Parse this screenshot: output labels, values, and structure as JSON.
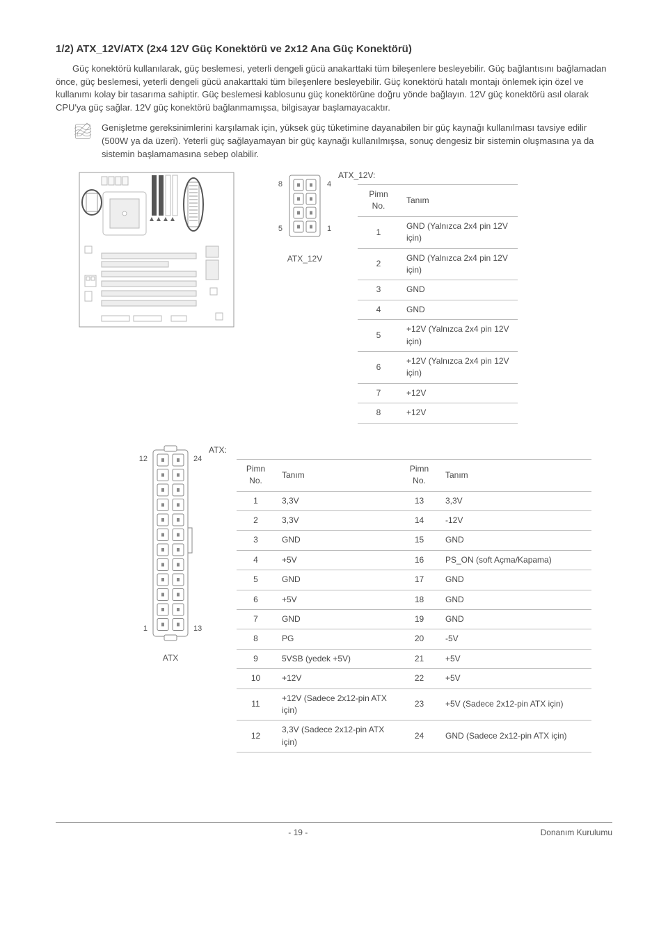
{
  "heading": "1/2) ATX_12V/ATX (2x4 12V Güç Konektörü ve 2x12 Ana Güç Konektörü)",
  "intro_paragraph": "Güç konektörü kullanılarak, güç beslemesi, yeterli dengeli gücü anakarttaki tüm bileşenlere besleyebilir. Güç bağlantısını bağlamadan önce, güç beslemesi, yeterli dengeli gücü anakarttaki tüm bileşenlere besleyebilir. Güç konektörü hatalı montajı önlemek için özel ve kullanımı kolay bir tasarıma sahiptir. Güç beslemesi kablosunu güç konektörüne doğru yönde bağlayın. 12V güç konektörü asıl olarak CPU'ya güç sağlar. 12V güç konektörü bağlanmamışsa, bilgisayar başlamayacaktır.",
  "note_text": "Genişletme gereksinimlerini karşılamak için, yüksek güç tüketimine dayanabilen bir güç kaynağı kullanılması tavsiye edilir (500W ya da üzeri). Yeterli güç sağlayamayan bir güç kaynağı kullanılmışsa, sonuç dengesiz bir sistemin oluşmasına ya da sistemin başlamamasına sebep olabilir.",
  "atx12v_title": "ATX_12V:",
  "atx12v_label": "ATX_12V",
  "atx12v_pins": {
    "tl": "8",
    "tr": "4",
    "bl": "5",
    "br": "1"
  },
  "col_pin": "Pimn No.",
  "col_def": "Tanım",
  "atx12v_table": [
    {
      "no": "1",
      "def": "GND (Yalnızca 2x4 pin 12V için)"
    },
    {
      "no": "2",
      "def": "GND (Yalnızca 2x4 pin 12V için)"
    },
    {
      "no": "3",
      "def": "GND"
    },
    {
      "no": "4",
      "def": "GND"
    },
    {
      "no": "5",
      "def": "+12V (Yalnızca 2x4 pin 12V için)"
    },
    {
      "no": "6",
      "def": "+12V (Yalnızca 2x4 pin 12V için)"
    },
    {
      "no": "7",
      "def": "+12V"
    },
    {
      "no": "8",
      "def": "+12V"
    }
  ],
  "atx_title": "ATX:",
  "atx_label": "ATX",
  "atx_pins": {
    "tl": "12",
    "tr": "24",
    "bl": "1",
    "br": "13"
  },
  "atx_table_left": [
    {
      "no": "1",
      "def": "3,3V"
    },
    {
      "no": "2",
      "def": "3,3V"
    },
    {
      "no": "3",
      "def": "GND"
    },
    {
      "no": "4",
      "def": "+5V"
    },
    {
      "no": "5",
      "def": "GND"
    },
    {
      "no": "6",
      "def": "+5V"
    },
    {
      "no": "7",
      "def": "GND"
    },
    {
      "no": "8",
      "def": "PG"
    },
    {
      "no": "9",
      "def": "5VSB (yedek +5V)"
    },
    {
      "no": "10",
      "def": "+12V"
    },
    {
      "no": "11",
      "def": "+12V (Sadece 2x12-pin ATX için)"
    },
    {
      "no": "12",
      "def": "3,3V (Sadece 2x12-pin ATX için)"
    }
  ],
  "atx_table_right": [
    {
      "no": "13",
      "def": "3,3V"
    },
    {
      "no": "14",
      "def": "-12V"
    },
    {
      "no": "15",
      "def": "GND"
    },
    {
      "no": "16",
      "def": "PS_ON (soft Açma/Kapama)"
    },
    {
      "no": "17",
      "def": "GND"
    },
    {
      "no": "18",
      "def": "GND"
    },
    {
      "no": "19",
      "def": "GND"
    },
    {
      "no": "20",
      "def": "-5V"
    },
    {
      "no": "21",
      "def": "+5V"
    },
    {
      "no": "22",
      "def": "+5V"
    },
    {
      "no": "23",
      "def": "+5V (Sadece 2x12-pin ATX için)"
    },
    {
      "no": "24",
      "def": "GND (Sadece 2x12-pin ATX için)"
    }
  ],
  "page_num": "- 19 -",
  "page_footer": "Donanım Kurulumu",
  "colors": {
    "text": "#4a4a4a",
    "border": "#bbbbbb",
    "fill_conn": "#ffffff",
    "stroke_conn": "#888888"
  }
}
